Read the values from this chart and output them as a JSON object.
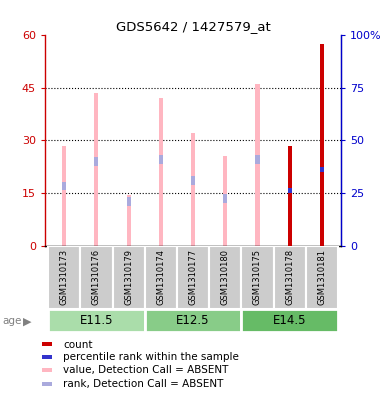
{
  "title": "GDS5642 / 1427579_at",
  "samples": [
    "GSM1310173",
    "GSM1310176",
    "GSM1310179",
    "GSM1310174",
    "GSM1310177",
    "GSM1310180",
    "GSM1310175",
    "GSM1310178",
    "GSM1310181"
  ],
  "age_groups": [
    {
      "label": "E11.5",
      "start": 0,
      "end": 3,
      "color": "#aaddaa"
    },
    {
      "label": "E12.5",
      "start": 3,
      "end": 6,
      "color": "#88cc88"
    },
    {
      "label": "E14.5",
      "start": 6,
      "end": 9,
      "color": "#66bb66"
    }
  ],
  "value_absent": [
    28.5,
    43.5,
    14.5,
    42.0,
    32.0,
    25.5,
    46.0,
    0.0,
    0.0
  ],
  "rank_absent_pos": [
    17.0,
    24.0,
    12.5,
    24.5,
    18.5,
    13.5,
    24.5,
    0.0,
    0.0
  ],
  "rank_absent_height": [
    2.5,
    2.5,
    2.5,
    2.5,
    2.5,
    2.5,
    2.5,
    0.0,
    0.0
  ],
  "count_val": [
    0.0,
    0.0,
    0.0,
    0.0,
    0.0,
    0.0,
    0.0,
    28.5,
    57.5
  ],
  "percentile_pos": [
    0.0,
    0.0,
    0.0,
    0.0,
    0.0,
    0.0,
    0.0,
    15.0,
    21.0
  ],
  "percentile_height": [
    0.0,
    0.0,
    0.0,
    0.0,
    0.0,
    0.0,
    0.0,
    1.5,
    1.5
  ],
  "ylim_left": [
    0,
    60
  ],
  "ylim_right": [
    0,
    100
  ],
  "yticks_left": [
    0,
    15,
    30,
    45,
    60
  ],
  "ytick_labels_left": [
    "0",
    "15",
    "30",
    "45",
    "60"
  ],
  "yticks_right": [
    0,
    25,
    50,
    75,
    100
  ],
  "ytick_labels_right": [
    "0",
    "25",
    "50",
    "75",
    "100%"
  ],
  "bar_width": 0.13,
  "color_count": "#CC0000",
  "color_percentile": "#3333CC",
  "color_value_absent": "#FFB6C1",
  "color_rank_absent": "#AAAADD",
  "legend_items": [
    {
      "color": "#CC0000",
      "label": "count"
    },
    {
      "color": "#3333CC",
      "label": "percentile rank within the sample"
    },
    {
      "color": "#FFB6C1",
      "label": "value, Detection Call = ABSENT"
    },
    {
      "color": "#AAAADD",
      "label": "rank, Detection Call = ABSENT"
    }
  ]
}
